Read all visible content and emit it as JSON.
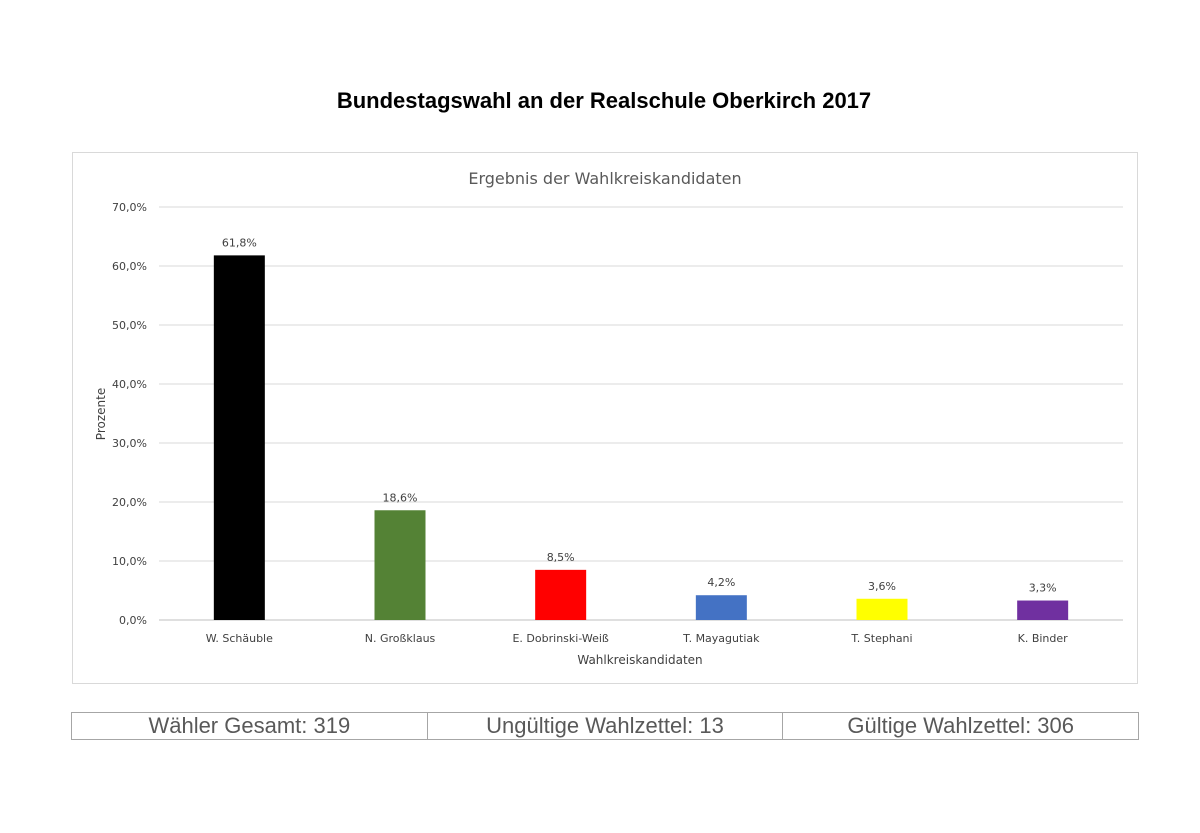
{
  "page": {
    "title": "Bundestagswahl an der Realschule Oberkirch 2017"
  },
  "chart_data": {
    "type": "bar",
    "title": "Ergebnis der Wahlkreiskandidaten",
    "xlabel": "Wahlkreiskandidaten",
    "ylabel": "Prozente",
    "ylim": [
      0,
      70
    ],
    "yticks": [
      "0,0%",
      "10,0%",
      "20,0%",
      "30,0%",
      "40,0%",
      "50,0%",
      "60,0%",
      "70,0%"
    ],
    "grid": true,
    "categories": [
      "W. Schäuble",
      "N. Großklaus",
      "E. Dobrinski-Weiß",
      "T. Mayagutiak",
      "T. Stephani",
      "K. Binder"
    ],
    "values": [
      61.8,
      18.6,
      8.5,
      4.2,
      3.6,
      3.3
    ],
    "data_labels": [
      "61,8%",
      "18,6%",
      "8,5%",
      "4,2%",
      "3,6%",
      "3,3%"
    ],
    "colors": [
      "#000000",
      "#548235",
      "#ff0000",
      "#4472c4",
      "#ffff00",
      "#7030a0"
    ]
  },
  "stats": [
    {
      "label": "Wähler Gesamt: 319"
    },
    {
      "label": "Ungültige Wahlzettel: 13"
    },
    {
      "label": "Gültige Wahlzettel: 306"
    }
  ]
}
